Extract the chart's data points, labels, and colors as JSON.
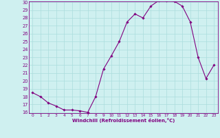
{
  "x": [
    0,
    1,
    2,
    3,
    4,
    5,
    6,
    7,
    8,
    9,
    10,
    11,
    12,
    13,
    14,
    15,
    16,
    17,
    18,
    19,
    20,
    21,
    22,
    23
  ],
  "y": [
    18.5,
    18.0,
    17.2,
    16.8,
    16.3,
    16.3,
    16.2,
    16.0,
    18.0,
    21.5,
    23.2,
    25.0,
    27.5,
    28.5,
    28.0,
    29.5,
    30.2,
    30.2,
    30.1,
    29.5,
    27.5,
    23.0,
    20.3,
    22.0
  ],
  "line_color": "#800080",
  "marker": "D",
  "marker_size": 1.8,
  "bg_color": "#cff0f0",
  "grid_color": "#aadddd",
  "xlabel": "Windchill (Refroidissement éolien,°C)",
  "xlabel_color": "#800080",
  "tick_color": "#800080",
  "ylim_min": 16,
  "ylim_max": 30,
  "xlim_min": -0.5,
  "xlim_max": 23.5,
  "yticks": [
    16,
    17,
    18,
    19,
    20,
    21,
    22,
    23,
    24,
    25,
    26,
    27,
    28,
    29,
    30
  ],
  "xticks": [
    0,
    1,
    2,
    3,
    4,
    5,
    6,
    7,
    8,
    9,
    10,
    11,
    12,
    13,
    14,
    15,
    16,
    17,
    18,
    19,
    20,
    21,
    22,
    23
  ]
}
